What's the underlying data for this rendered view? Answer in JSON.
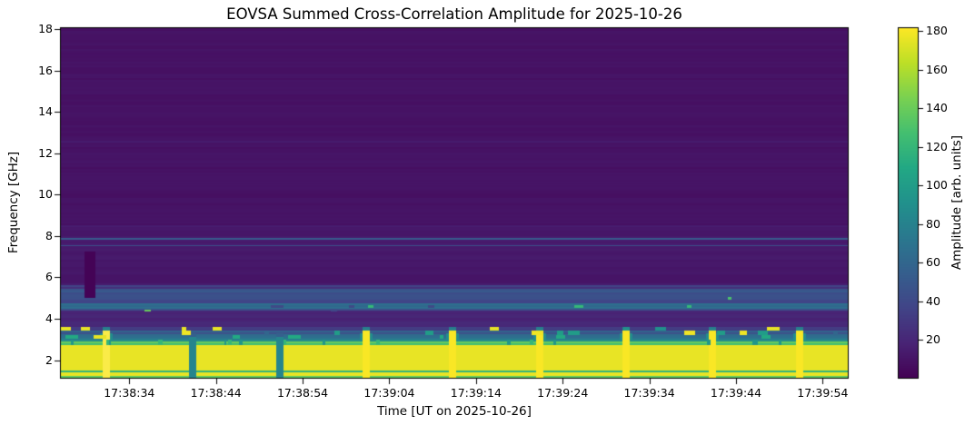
{
  "chart_data": {
    "type": "heatmap",
    "title": "EOVSA Summed Cross-Correlation Amplitude for 2025-10-26",
    "xlabel": "Time [UT on 2025-10-26]",
    "ylabel": "Frequency [GHz]",
    "x_tick_labels": [
      "17:38:34",
      "17:38:44",
      "17:38:54",
      "17:39:04",
      "17:39:14",
      "17:39:24",
      "17:39:34",
      "17:39:44",
      "17:39:54"
    ],
    "x_tick_times_s": [
      8,
      18,
      28,
      38,
      48,
      58,
      68,
      78,
      88
    ],
    "time_range_s": [
      0,
      91
    ],
    "time_window_ut": [
      "17:38:26",
      "17:39:57"
    ],
    "ylim_ghz": [
      1.1,
      18.1
    ],
    "y_tick_labels": [
      "2",
      "4",
      "6",
      "8",
      "10",
      "12",
      "14",
      "16",
      "18"
    ],
    "y_tick_values": [
      2,
      4,
      6,
      8,
      10,
      12,
      14,
      16,
      18
    ],
    "grid": false,
    "legend": "none",
    "colormap": "viridis",
    "colormap_stops": [
      [
        0,
        "#440154"
      ],
      [
        0.1,
        "#482475"
      ],
      [
        0.2,
        "#414487"
      ],
      [
        0.3,
        "#355f8d"
      ],
      [
        0.4,
        "#2a788e"
      ],
      [
        0.5,
        "#21918c"
      ],
      [
        0.6,
        "#22a884"
      ],
      [
        0.7,
        "#44bf70"
      ],
      [
        0.8,
        "#7ad151"
      ],
      [
        0.9,
        "#bddf26"
      ],
      [
        1,
        "#fde725"
      ]
    ],
    "colorbar": {
      "label": "Amplitude [arb. units]",
      "tick_labels": [
        "20",
        "40",
        "60",
        "80",
        "100",
        "120",
        "140",
        "160",
        "180"
      ],
      "tick_values": [
        20,
        40,
        60,
        80,
        100,
        120,
        140,
        160,
        180
      ],
      "vmin": 0,
      "vmax": 182
    },
    "background_bands": [
      {
        "f0": 8.5,
        "f1": 18.1,
        "amp": 9,
        "noise": 1.6
      },
      {
        "f0": 5.62,
        "f1": 8.5,
        "amp": 12,
        "noise": 2.2
      },
      {
        "f0": 5.45,
        "f1": 5.62,
        "amp": 30,
        "noise": 6
      },
      {
        "f0": 5.28,
        "f1": 5.45,
        "amp": 52,
        "noise": 8
      },
      {
        "f0": 5.06,
        "f1": 5.28,
        "amp": 42,
        "noise": 7
      },
      {
        "f0": 4.9,
        "f1": 5.06,
        "amp": 47,
        "noise": 8
      },
      {
        "f0": 4.72,
        "f1": 4.9,
        "amp": 34,
        "noise": 6
      },
      {
        "f0": 4.5,
        "f1": 4.72,
        "amp": 60,
        "noise": 10
      },
      {
        "f0": 4.36,
        "f1": 4.5,
        "amp": 46,
        "noise": 8
      },
      {
        "f0": 3.62,
        "f1": 4.36,
        "amp": 19,
        "noise": 3
      },
      {
        "f0": 3.42,
        "f1": 3.62,
        "amp": 33,
        "noise": 7
      },
      {
        "f0": 3.22,
        "f1": 3.42,
        "amp": 50,
        "noise": 9
      },
      {
        "f0": 3.0,
        "f1": 3.22,
        "amp": 66,
        "noise": 9
      },
      {
        "f0": 2.86,
        "f1": 3.0,
        "amp": 90,
        "noise": 12
      },
      {
        "f0": 2.74,
        "f1": 2.86,
        "amp": 125,
        "noise": 15
      },
      {
        "f0": 1.1,
        "f1": 2.74,
        "amp": 176,
        "noise": 0,
        "yellow_stripes": true
      }
    ],
    "spectral_lines": [
      {
        "f": 7.93,
        "amp": 52,
        "h": 2
      },
      {
        "f": 7.54,
        "amp": 44,
        "h": 1
      },
      {
        "f": 12.6,
        "amp": 14,
        "h": 2
      },
      {
        "f": 15.8,
        "amp": 12,
        "h": 1
      },
      {
        "f": 10.5,
        "amp": 11,
        "h": 1
      }
    ],
    "dash_rows": [
      {
        "f": 4.98,
        "h": 3,
        "prob": 0.06,
        "amps": [
          176,
          130
        ]
      },
      {
        "f": 4.6,
        "h": 3,
        "prob": 0.16,
        "amps": [
          176,
          120,
          40,
          40
        ]
      },
      {
        "f": 4.4,
        "h": 2,
        "prob": 0.05,
        "amps": [
          140,
          40
        ]
      },
      {
        "f": 3.9,
        "h": 2,
        "prob": 0.03,
        "amps": [
          55
        ]
      },
      {
        "f": 3.52,
        "h": 4,
        "prob": 0.22,
        "amps": [
          176,
          176,
          90
        ]
      },
      {
        "f": 3.32,
        "h": 5,
        "prob": 0.32,
        "amps": [
          178,
          178,
          100,
          60
        ]
      },
      {
        "f": 3.1,
        "h": 4,
        "prob": 0.18,
        "amps": [
          176,
          110
        ]
      }
    ],
    "calibration_columns": {
      "start_s": 4.9,
      "period_s": 10,
      "width_s": 0.85,
      "types": [
        "pale",
        "teal",
        "teal",
        "yellow",
        "yellow",
        "yellow",
        "yellow",
        "yellow",
        "yellow"
      ]
    },
    "dark_patch": {
      "t0_s": 2.85,
      "t1_s": 4.15,
      "f0_ghz": 5.0,
      "f1_ghz": 7.25,
      "amp": 1
    },
    "seed": 7
  }
}
